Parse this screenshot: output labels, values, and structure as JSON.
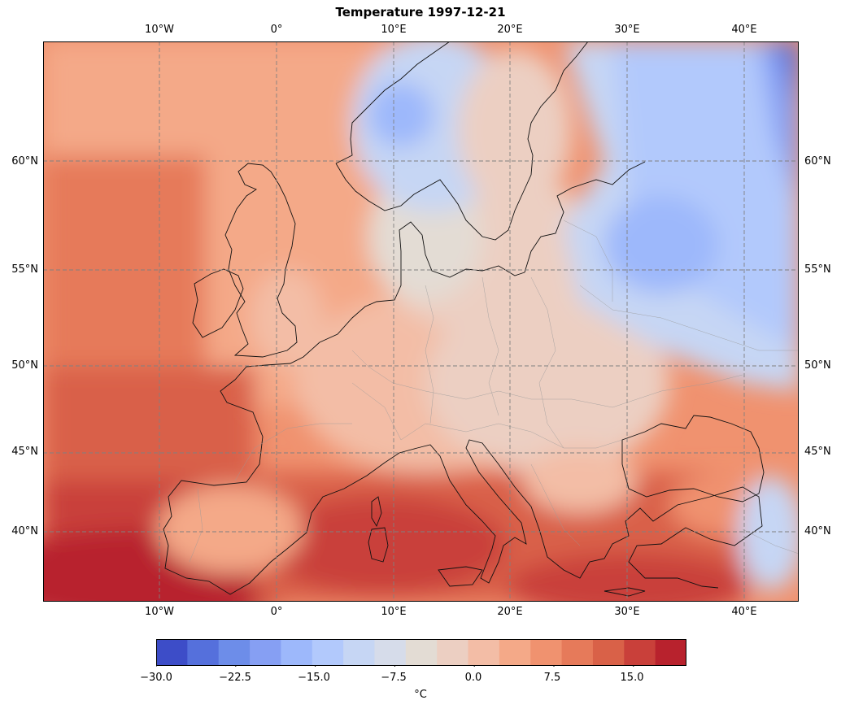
{
  "map": {
    "title": "Temperature 1997-12-21",
    "lon_labels": [
      "10°W",
      "0°",
      "10°E",
      "20°E",
      "30°E",
      "40°E"
    ],
    "lat_labels": [
      "60°N",
      "55°N",
      "50°N",
      "45°N",
      "40°N"
    ],
    "extent": {
      "lon": [
        -20,
        44.7
      ],
      "lat": [
        36.2,
        66
      ]
    },
    "gridlines": {
      "lon": [
        -10,
        0,
        10,
        20,
        30,
        40
      ],
      "lat": [
        60,
        55,
        50,
        45,
        40
      ]
    }
  },
  "colorbar": {
    "unit": "°C",
    "tick_labels": [
      "−30.0",
      "−22.5",
      "−15.0",
      "−7.5",
      "0.0",
      "7.5",
      "15.0"
    ],
    "tick_values": [
      -30,
      -22.5,
      -15,
      -7.5,
      0,
      7.5,
      15
    ],
    "range": [
      -30,
      20
    ],
    "levels": 20,
    "colors": [
      "#3d4dc8",
      "#5570dc",
      "#6d8de9",
      "#869ff3",
      "#9db8fb",
      "#b2c9fc",
      "#c6d6f4",
      "#d6dcea",
      "#e3dcd4",
      "#eccfc2",
      "#f3bda6",
      "#f4a988",
      "#f0926f",
      "#e67a5a",
      "#d96148",
      "#c9403a",
      "#b8222d"
    ]
  }
}
